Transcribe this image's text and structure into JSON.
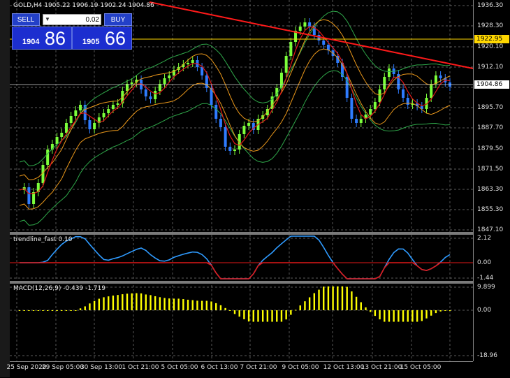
{
  "symbol_title": "GOLD,H4  1905.22 1906.19 1902.24 1904.86",
  "trade_panel": {
    "sell_label": "SELL",
    "buy_label": "BUY",
    "lot_value": "0.02",
    "sell_price_small": "1904",
    "sell_price_big": "86",
    "buy_price_small": "1905",
    "buy_price_big": "66"
  },
  "price_axis": {
    "ticks": [
      "1936.30",
      "1928.30",
      "1920.10",
      "1912.10",
      "1895.70",
      "1887.70",
      "1879.50",
      "1871.50",
      "1863.30",
      "1855.30",
      "1847.10"
    ],
    "current_price": "1904.86",
    "level_price": "1922.95",
    "colors": {
      "current": "#ffffff",
      "level": "#ffd700"
    }
  },
  "indicator1": {
    "title": "trendline_fast 0.10",
    "ticks": [
      "2.12",
      "0.00",
      "-1.44"
    ]
  },
  "indicator2": {
    "title": "MACD(12,26,9) -0.439 -1.719",
    "ticks": [
      "9.899",
      "0.00",
      "-18.96"
    ]
  },
  "time_axis": {
    "labels": [
      "25 Sep 2020",
      "29 Sep 05:00",
      "30 Sep 13:00",
      "1 Oct 21:00",
      "5 Oct 05:00",
      "6 Oct 13:00",
      "7 Oct 21:00",
      "9 Oct 05:00",
      "12 Oct 13:00",
      "13 Oct 21:00",
      "15 Oct 05:00"
    ]
  },
  "colors": {
    "bull_candle": "#7cff3a",
    "bear_candle": "#2f7cff",
    "bollinger": "#2fa84a",
    "envelope": "#e8961a",
    "red_ma": "#e01818",
    "trendline": "#ff1a1a",
    "macd_hist": "#ffff00",
    "signal": "#d42020"
  }
}
